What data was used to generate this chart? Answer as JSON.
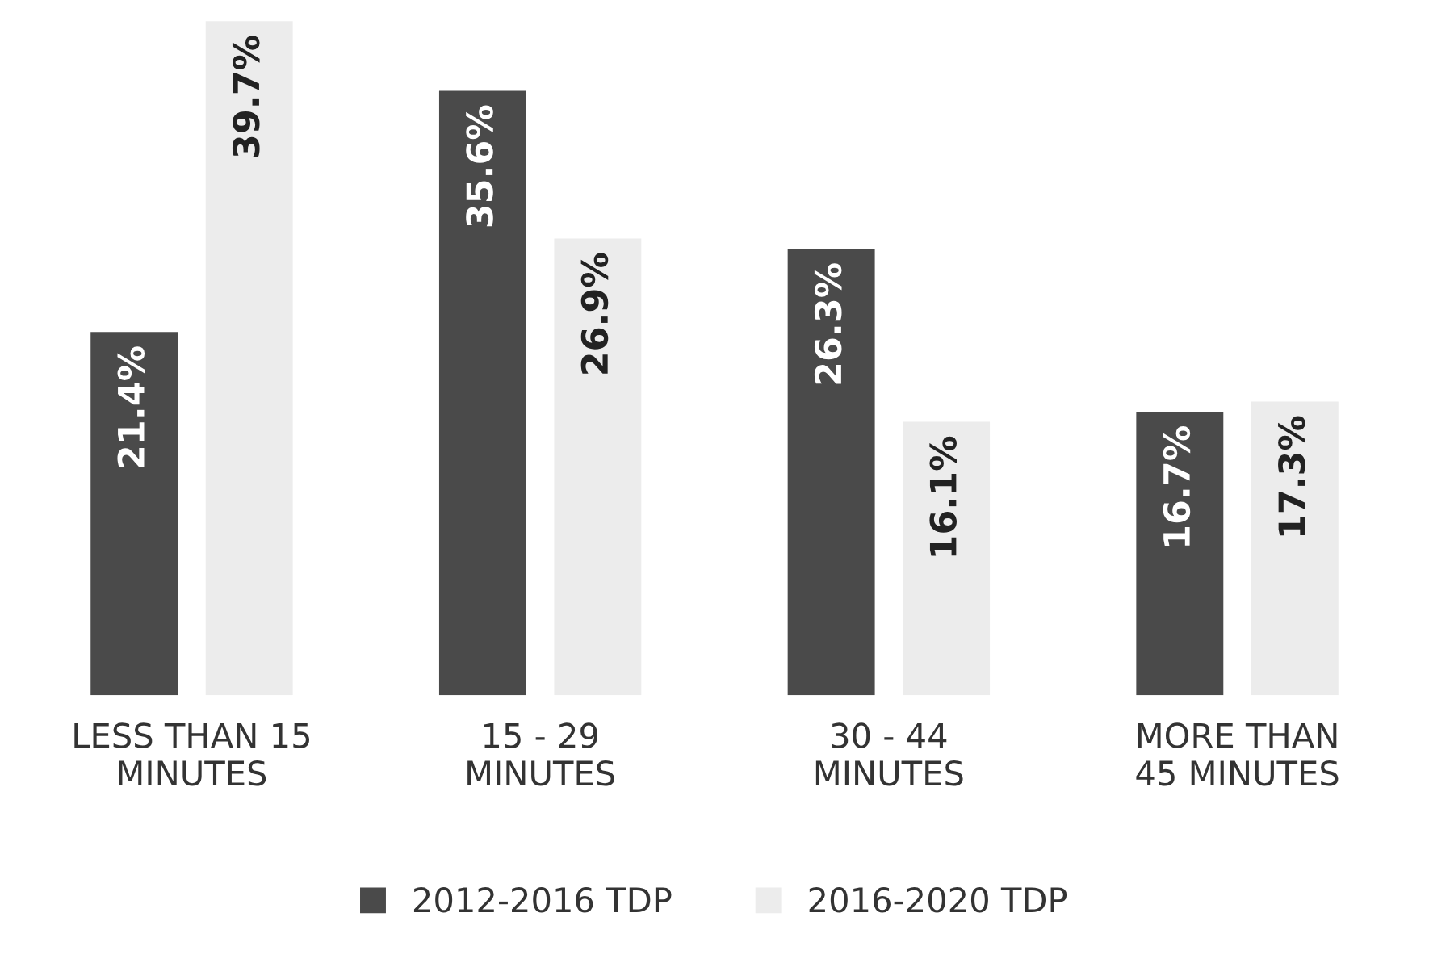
{
  "chart_data": {
    "type": "bar",
    "categories": [
      "LESS THAN 15\nMINUTES",
      "15 - 29\nMINUTES",
      "30 - 44\nMINUTES",
      "MORE THAN\n45 MINUTES"
    ],
    "series": [
      {
        "name": "2012-2016 TDP",
        "color": "#4a4a4a",
        "values": [
          21.4,
          35.6,
          26.3,
          16.7
        ],
        "value_labels": [
          "21.4%",
          "35.6%",
          "26.3%",
          "16.7%"
        ]
      },
      {
        "name": "2016-2020 TDP",
        "color": "#ececec",
        "values": [
          39.7,
          26.9,
          16.1,
          17.3
        ],
        "value_labels": [
          "39.7%",
          "26.9%",
          "16.1%",
          "17.3%"
        ]
      }
    ],
    "legend": "bottom"
  }
}
